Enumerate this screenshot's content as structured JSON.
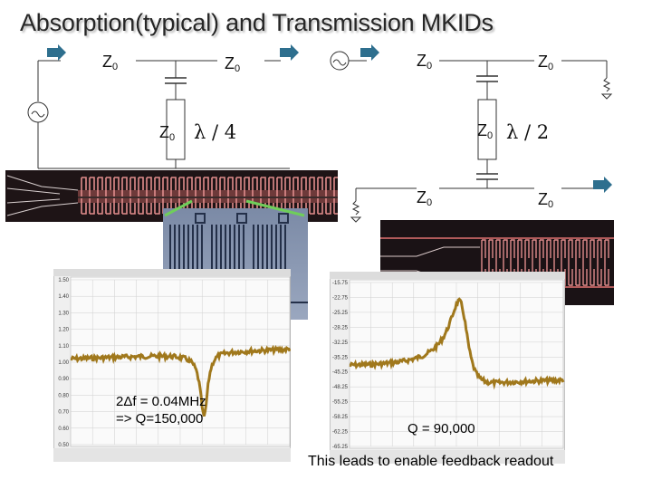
{
  "slide": {
    "title": "Absorption(typical) and Transmission MKIDs",
    "absorption": {
      "z_labels": [
        "Z0",
        "Z0",
        "Z0"
      ],
      "stub_length": "λ / 4",
      "bandwidth_note": "2Δf = 0.04MHz",
      "q_note": "=> Q=150,000"
    },
    "transmission": {
      "z_labels": [
        "Z0",
        "Z0",
        "Z0",
        "Z0",
        "Z0"
      ],
      "stub_length": "λ / 2",
      "q_note": "Q = 90,000"
    },
    "footer": "This leads to enable feedback readout",
    "left_plot": {
      "y_ticks": [
        "1.50",
        "1.40",
        "1.30",
        "1.20",
        "1.10",
        "1.00",
        "0.90",
        "0.80",
        "0.70",
        "0.60",
        "0.50"
      ],
      "trace_color": "#a0781c"
    },
    "right_plot": {
      "y_ticks": [
        "-15.75",
        "-22.75",
        "-25.25",
        "-28.25",
        "-32.25",
        "-35.25",
        "-45.25",
        "-48.25",
        "-55.25",
        "-58.25",
        "-62.25",
        "-65.25"
      ],
      "trace_color": "#a0781c"
    },
    "colors": {
      "arrow": "#2e6f8e",
      "chip_background": "#1e1416",
      "chip_pattern": "#e08c8c",
      "bracket": "#6fce5a"
    }
  }
}
